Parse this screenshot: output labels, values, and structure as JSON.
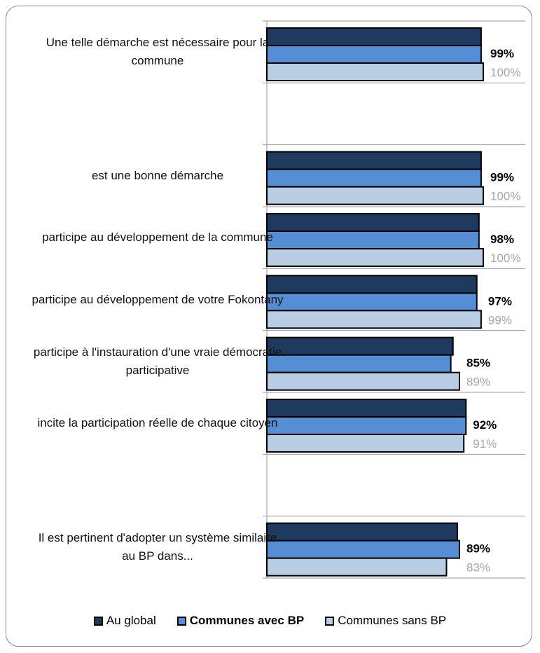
{
  "chart_data": {
    "type": "bar",
    "orientation": "horizontal",
    "categories": [
      "Une telle démarche est nécessaire pour la commune",
      null,
      "est une bonne  démarche",
      "participe au développement de la commune",
      "participe au développement de votre Fokontany",
      "participe à l'instauration d'une vraie démocratie participative",
      "incite la participation réelle de chaque citoyen",
      null,
      "Il est pertinent d'adopter un système similaire au BP dans..."
    ],
    "series": [
      {
        "name": "Au global",
        "color": "#1f3a5f",
        "values": [
          99,
          null,
          99,
          98,
          97,
          86,
          92,
          null,
          88
        ]
      },
      {
        "name": "Communes avec BP",
        "color": "#558ed5",
        "values": [
          99,
          null,
          99,
          98,
          97,
          85,
          92,
          null,
          89
        ],
        "value_labels": [
          "99%",
          null,
          "99%",
          "98%",
          "97%",
          "85%",
          "92%",
          null,
          "89%"
        ]
      },
      {
        "name": "Communes sans BP",
        "color": "#b9cde5",
        "values": [
          100,
          null,
          100,
          100,
          99,
          89,
          91,
          null,
          83
        ],
        "value_labels": [
          "100%",
          null,
          "100%",
          "100%",
          "99%",
          "89%",
          "91%",
          null,
          "83%"
        ]
      }
    ],
    "xlim": [
      0,
      120
    ],
    "legend": "bottom"
  }
}
